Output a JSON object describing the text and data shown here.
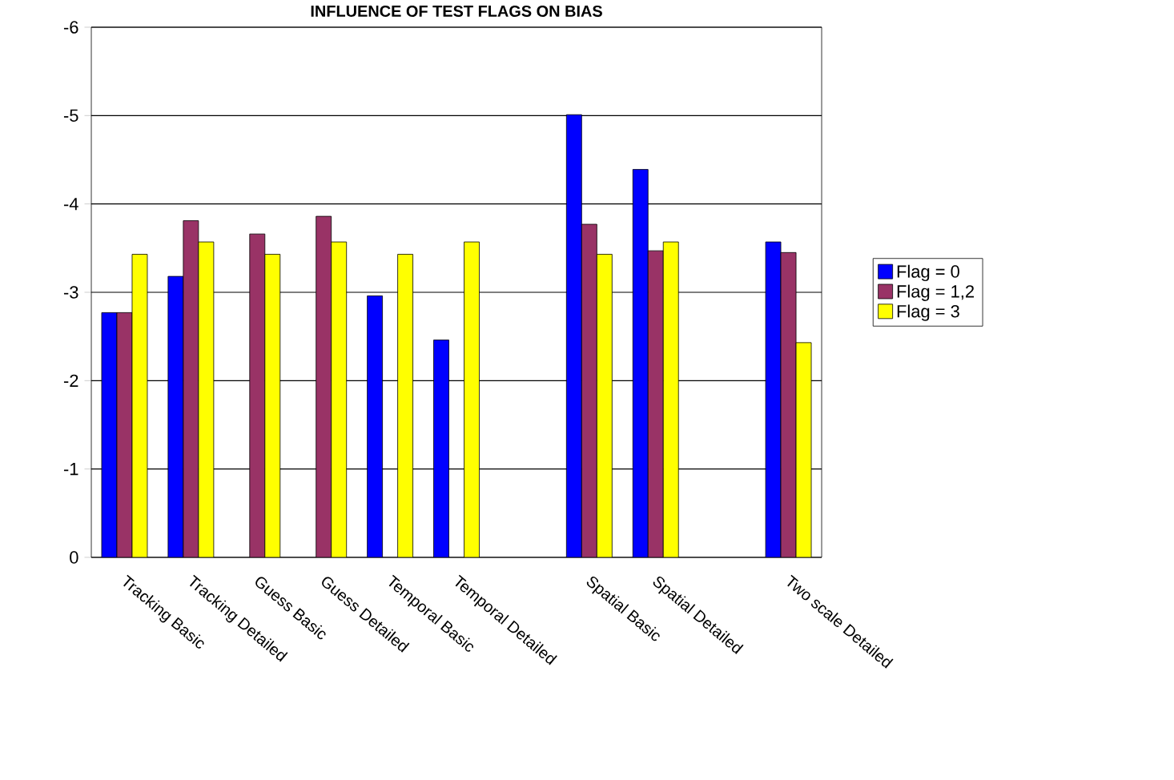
{
  "chart_data": {
    "type": "bar",
    "title": "INFLUENCE OF TEST FLAGS ON BIAS",
    "categories": [
      "Tracking Basic",
      "Tracking Detailed",
      "Guess Basic",
      "Guess Detailed",
      "Temporal Basic",
      "Temporal Detailed",
      null,
      "Spatial Basic",
      "Spatial Detailed",
      null,
      "Two scale Detailed"
    ],
    "series": [
      {
        "name": "Flag = 0",
        "color": "#0000ff",
        "values": [
          -2.77,
          -3.18,
          null,
          null,
          -2.96,
          -2.46,
          null,
          -5.01,
          -4.39,
          null,
          -3.57
        ]
      },
      {
        "name": "Flag = 1,2",
        "color": "#993366",
        "values": [
          -2.77,
          -3.81,
          -3.66,
          -3.86,
          null,
          null,
          null,
          -3.77,
          -3.47,
          null,
          -3.45
        ]
      },
      {
        "name": "Flag = 3",
        "color": "#ffff00",
        "values": [
          -3.43,
          -3.57,
          -3.43,
          -3.57,
          -3.43,
          -3.57,
          null,
          -3.43,
          -3.57,
          null,
          -2.43
        ]
      }
    ],
    "ylim": [
      0,
      -6
    ],
    "yticks": [
      0,
      -1,
      -2,
      -3,
      -4,
      -5,
      -6
    ],
    "grid": "y",
    "legend": "right"
  }
}
